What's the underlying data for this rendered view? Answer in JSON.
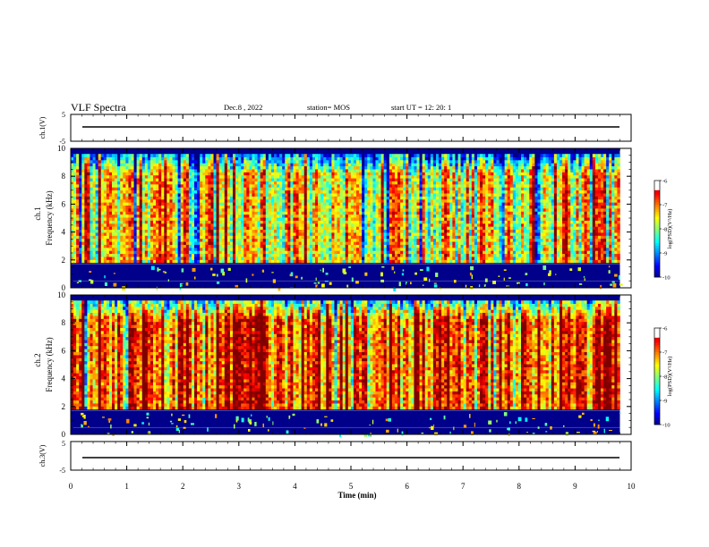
{
  "header": {
    "title": "VLF Spectra",
    "date": "Dec.8 , 2022",
    "station": "station= MOS",
    "start": "start UT = 12: 20: 1"
  },
  "chart_data": [
    {
      "type": "line",
      "panel": "ch1-voltage",
      "ylabel": "ch.1(V)",
      "ylim": [
        -5,
        5
      ],
      "yticks": [
        "5",
        "-5"
      ],
      "series": [
        {
          "values_description": "flat trace",
          "level": -0.5
        }
      ]
    },
    {
      "type": "heatmap",
      "panel": "ch1-spectrogram",
      "ylabel_top": "ch.1",
      "ylabel": "Frequency (kHz)",
      "ylim": [
        0,
        10
      ],
      "yticks": [
        "0",
        "2",
        "4",
        "6",
        "8",
        "10"
      ],
      "xlim": [
        0,
        10
      ],
      "dominant_band_khz": [
        1.8,
        9.6
      ],
      "noise_band_khz": [
        0,
        1.6
      ],
      "colorbar": {
        "label": "log(PSD)(V²/Hz)",
        "range": [
          -10,
          -6
        ],
        "ticks": [
          "-6",
          "-7",
          "-8",
          "-9",
          "-10"
        ]
      }
    },
    {
      "type": "heatmap",
      "panel": "ch2-spectrogram",
      "ylabel_top": "ch.2",
      "ylabel": "Frequency (kHz)",
      "ylim": [
        0,
        10
      ],
      "yticks": [
        "0",
        "2",
        "4",
        "6",
        "8",
        "10"
      ],
      "xlim": [
        0,
        10
      ],
      "dominant_band_khz": [
        1.8,
        9.6
      ],
      "noise_band_khz": [
        0,
        1.6
      ],
      "colorbar": {
        "label": "log(PSD)(V²/Hz)",
        "range": [
          -10,
          -6
        ],
        "ticks": [
          "-6",
          "-7",
          "-8",
          "-9",
          "-10"
        ]
      }
    },
    {
      "type": "line",
      "panel": "ch3-voltage",
      "ylabel": "ch.3(V)",
      "ylim": [
        -5,
        5
      ],
      "yticks": [
        "5",
        "-5"
      ],
      "series": [
        {
          "values_description": "flat trace",
          "level": -0.5
        }
      ]
    }
  ],
  "x_axis": {
    "label": "Time (min)",
    "range": [
      0,
      10
    ],
    "ticks": [
      "0",
      "1",
      "2",
      "3",
      "4",
      "5",
      "6",
      "7",
      "8",
      "9",
      "10"
    ]
  },
  "colors": {
    "low": "#00008b",
    "mid": "#00ff00",
    "high": "#ff0000",
    "max": "#ffffff"
  }
}
